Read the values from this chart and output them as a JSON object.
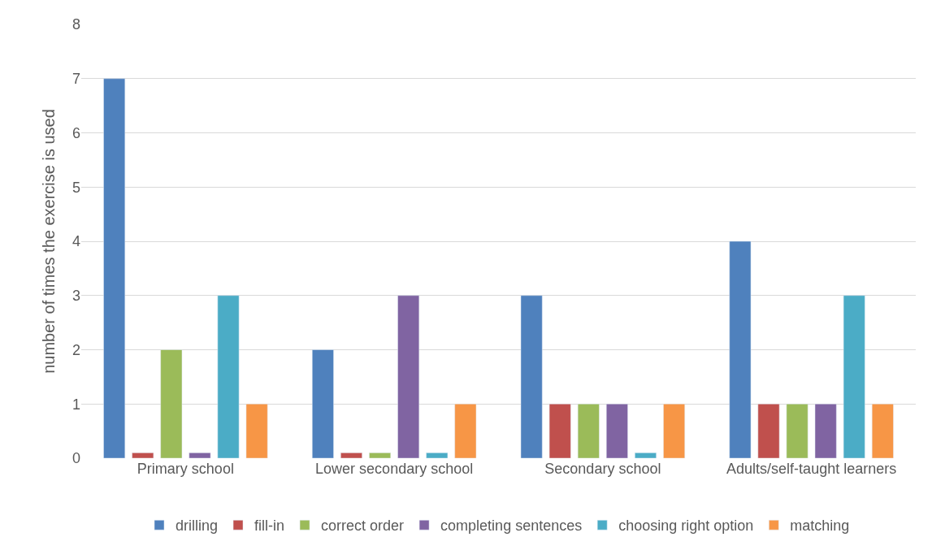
{
  "chart_data": {
    "type": "bar",
    "ylabel": "number of times the exercise is used",
    "categories": [
      "Primary school",
      "Lower secondary school",
      "Secondary school",
      "Adults/self-taught learners"
    ],
    "series": [
      {
        "name": "drilling",
        "color": "#4f81bd",
        "values": [
          7,
          2,
          3,
          4
        ]
      },
      {
        "name": "fill-in",
        "color": "#c0504d",
        "values": [
          0.1,
          0.1,
          1,
          1
        ]
      },
      {
        "name": "correct order",
        "color": "#9bbb59",
        "values": [
          2,
          0.1,
          1,
          1
        ]
      },
      {
        "name": "completing sentences",
        "color": "#8064a2",
        "values": [
          0.1,
          3,
          1,
          1
        ]
      },
      {
        "name": "choosing right option",
        "color": "#4bacc6",
        "values": [
          3,
          0.1,
          0.1,
          3
        ]
      },
      {
        "name": "matching",
        "color": "#f79646",
        "values": [
          1,
          1,
          1,
          1
        ]
      }
    ],
    "ylim": [
      0,
      8
    ],
    "yticks": [
      0,
      1,
      2,
      3,
      4,
      5,
      6,
      7,
      8
    ],
    "grid": "y",
    "legend": "bottom"
  }
}
